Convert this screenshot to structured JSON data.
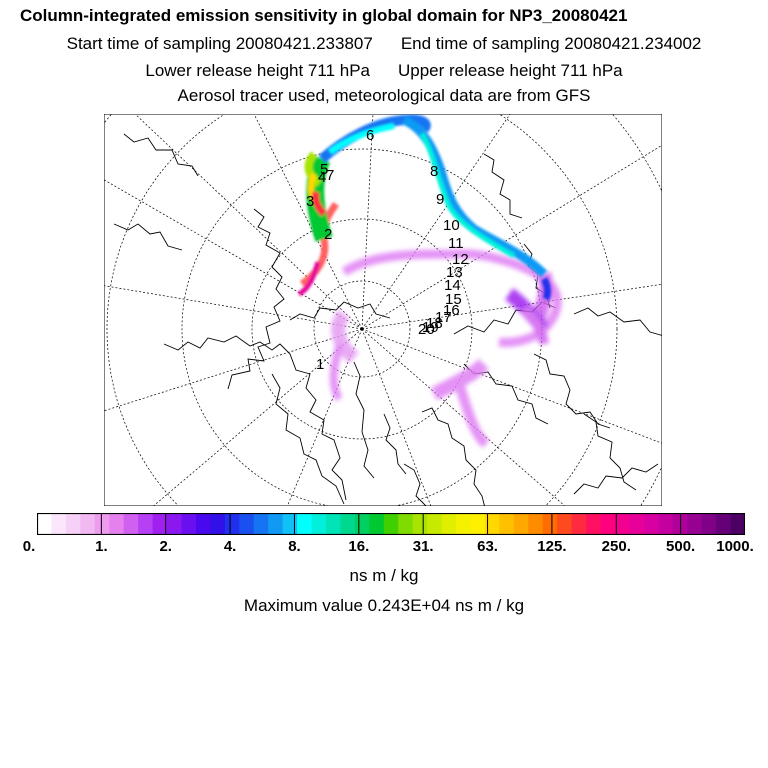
{
  "header": {
    "title": "Column-integrated emission sensitivity in global domain for NP3_20080421",
    "start_time": "Start time of sampling 20080421.233807",
    "end_time": "End time of sampling 20080421.234002",
    "lower_height": "Lower release height  711 hPa",
    "upper_height": "Upper release height  711 hPa",
    "tracer_info": "Aerosol tracer used, meteorological data are from GFS"
  },
  "map": {
    "labels": [
      "1",
      "2",
      "3",
      "4",
      "5",
      "6",
      "7",
      "8",
      "9",
      "10",
      "11",
      "12",
      "13",
      "14",
      "15",
      "16",
      "17",
      "18",
      "19",
      "20"
    ],
    "projection": "north polar stereographic",
    "coastline_color": "#000000",
    "graticule_color": "#000000"
  },
  "colorbar": {
    "ticks": [
      "0.",
      "1.",
      "2.",
      "4.",
      "8.",
      "16.",
      "31.",
      "63.",
      "125.",
      "250.",
      "500.",
      "1000."
    ],
    "colors": [
      "#ffffff",
      "#fbe6fb",
      "#f6d0f6",
      "#f2b8f2",
      "#ee9cf0",
      "#e680ee",
      "#d060f0",
      "#b840f4",
      "#a020f0",
      "#8c18f0",
      "#6a10f0",
      "#4a08ee",
      "#3210e8",
      "#2030ec",
      "#1a50f0",
      "#1474f2",
      "#109af4",
      "#10c0f6",
      "#00ffff",
      "#00f0dc",
      "#00e4b8",
      "#00d890",
      "#00d060",
      "#00c830",
      "#40d000",
      "#80dc00",
      "#a8e400",
      "#c8ea00",
      "#e0ee00",
      "#f4f200",
      "#fff000",
      "#ffd800",
      "#ffc000",
      "#ffa800",
      "#ff8c00",
      "#ff6c00",
      "#ff4a20",
      "#ff2a40",
      "#ff1060",
      "#ff0080",
      "#f40090",
      "#e8009a",
      "#d800a0",
      "#c400a0",
      "#b0009c",
      "#980094",
      "#800088",
      "#660078",
      "#4c0064"
    ]
  },
  "units": "ns m / kg",
  "max_value": "Maximum value  0.243E+04 ns m / kg"
}
